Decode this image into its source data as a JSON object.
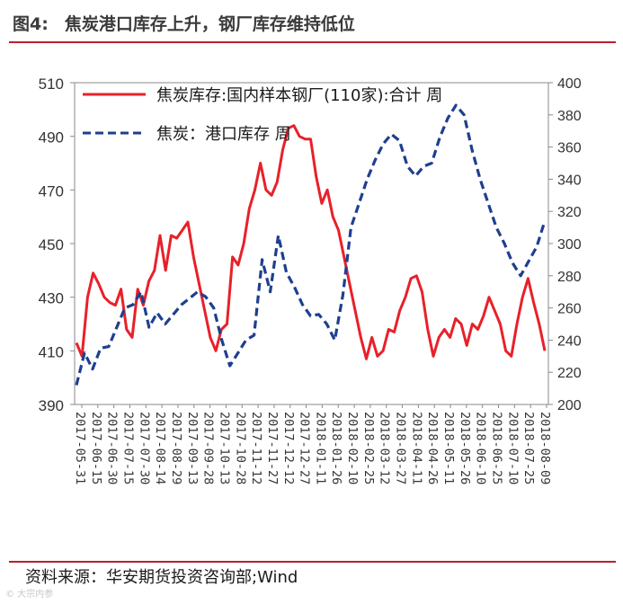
{
  "header": {
    "figure_number": "图4:",
    "title": "焦炭港口库存上升，钢厂库存维持低位"
  },
  "footer": {
    "source": "资料来源：华安期货投资咨询部;Wind",
    "watermark": "© 大宗内参"
  },
  "colors": {
    "series1": "#e8202a",
    "series2": "#1e3f8f",
    "rule": "#b8202e"
  },
  "chart_data": {
    "type": "line",
    "title": "",
    "yleft": {
      "min": 390,
      "max": 510,
      "ticks": [
        390,
        410,
        430,
        450,
        470,
        490,
        510
      ]
    },
    "yright": {
      "min": 200,
      "max": 400,
      "ticks": [
        200,
        220,
        240,
        260,
        280,
        300,
        320,
        340,
        360,
        380,
        400
      ]
    },
    "x_tick_labels": [
      "2017-05-31",
      "2017-06-15",
      "2017-06-30",
      "2017-07-15",
      "2017-07-30",
      "2017-08-14",
      "2017-08-29",
      "2017-09-13",
      "2017-09-28",
      "2017-10-13",
      "2017-10-28",
      "2017-11-12",
      "2017-11-27",
      "2017-12-12",
      "2017-12-27",
      "2018-01-11",
      "2018-01-26",
      "2018-02-10",
      "2018-02-25",
      "2018-03-12",
      "2018-03-27",
      "2018-04-11",
      "2018-04-26",
      "2018-05-11",
      "2018-05-26",
      "2018-06-10",
      "2018-06-25",
      "2018-07-10",
      "2018-07-25",
      "2018-08-09"
    ],
    "legend_position": "top",
    "series": [
      {
        "name": "焦炭库存:国内样本钢厂(110家):合计 周",
        "axis": "left",
        "style": "solid",
        "values": [
          413,
          408,
          430,
          439,
          435,
          430,
          428,
          427,
          433,
          418,
          415,
          433,
          427,
          436,
          440,
          453,
          440,
          453,
          452,
          455,
          458,
          445,
          435,
          425,
          415,
          410,
          418,
          420,
          445,
          442,
          450,
          463,
          470,
          480,
          470,
          468,
          473,
          485,
          493,
          494,
          490,
          489,
          489,
          475,
          465,
          470,
          460,
          455,
          445,
          435,
          425,
          415,
          407,
          415,
          408,
          410,
          418,
          417,
          425,
          430,
          437,
          438,
          432,
          418,
          408,
          415,
          418,
          415,
          422,
          420,
          412,
          420,
          418,
          423,
          430,
          425,
          420,
          410,
          408,
          420,
          430,
          437,
          428,
          420,
          410
        ],
        "note_values_are_weekly_approx": ""
      },
      {
        "name": "焦炭：港口库存 周",
        "axis": "right",
        "style": "dashed",
        "values": [
          212,
          232,
          222,
          235,
          236,
          248,
          260,
          262,
          270,
          248,
          257,
          250,
          256,
          262,
          266,
          270,
          267,
          260,
          240,
          224,
          232,
          240,
          243,
          290,
          270,
          305,
          282,
          273,
          262,
          255,
          256,
          250,
          240,
          268,
          310,
          325,
          340,
          352,
          362,
          368,
          364,
          348,
          342,
          348,
          350,
          366,
          378,
          386,
          380,
          358,
          340,
          325,
          310,
          300,
          288,
          280,
          289,
          298,
          314
        ],
        "note_values_are_weekly_approx": ""
      }
    ]
  }
}
